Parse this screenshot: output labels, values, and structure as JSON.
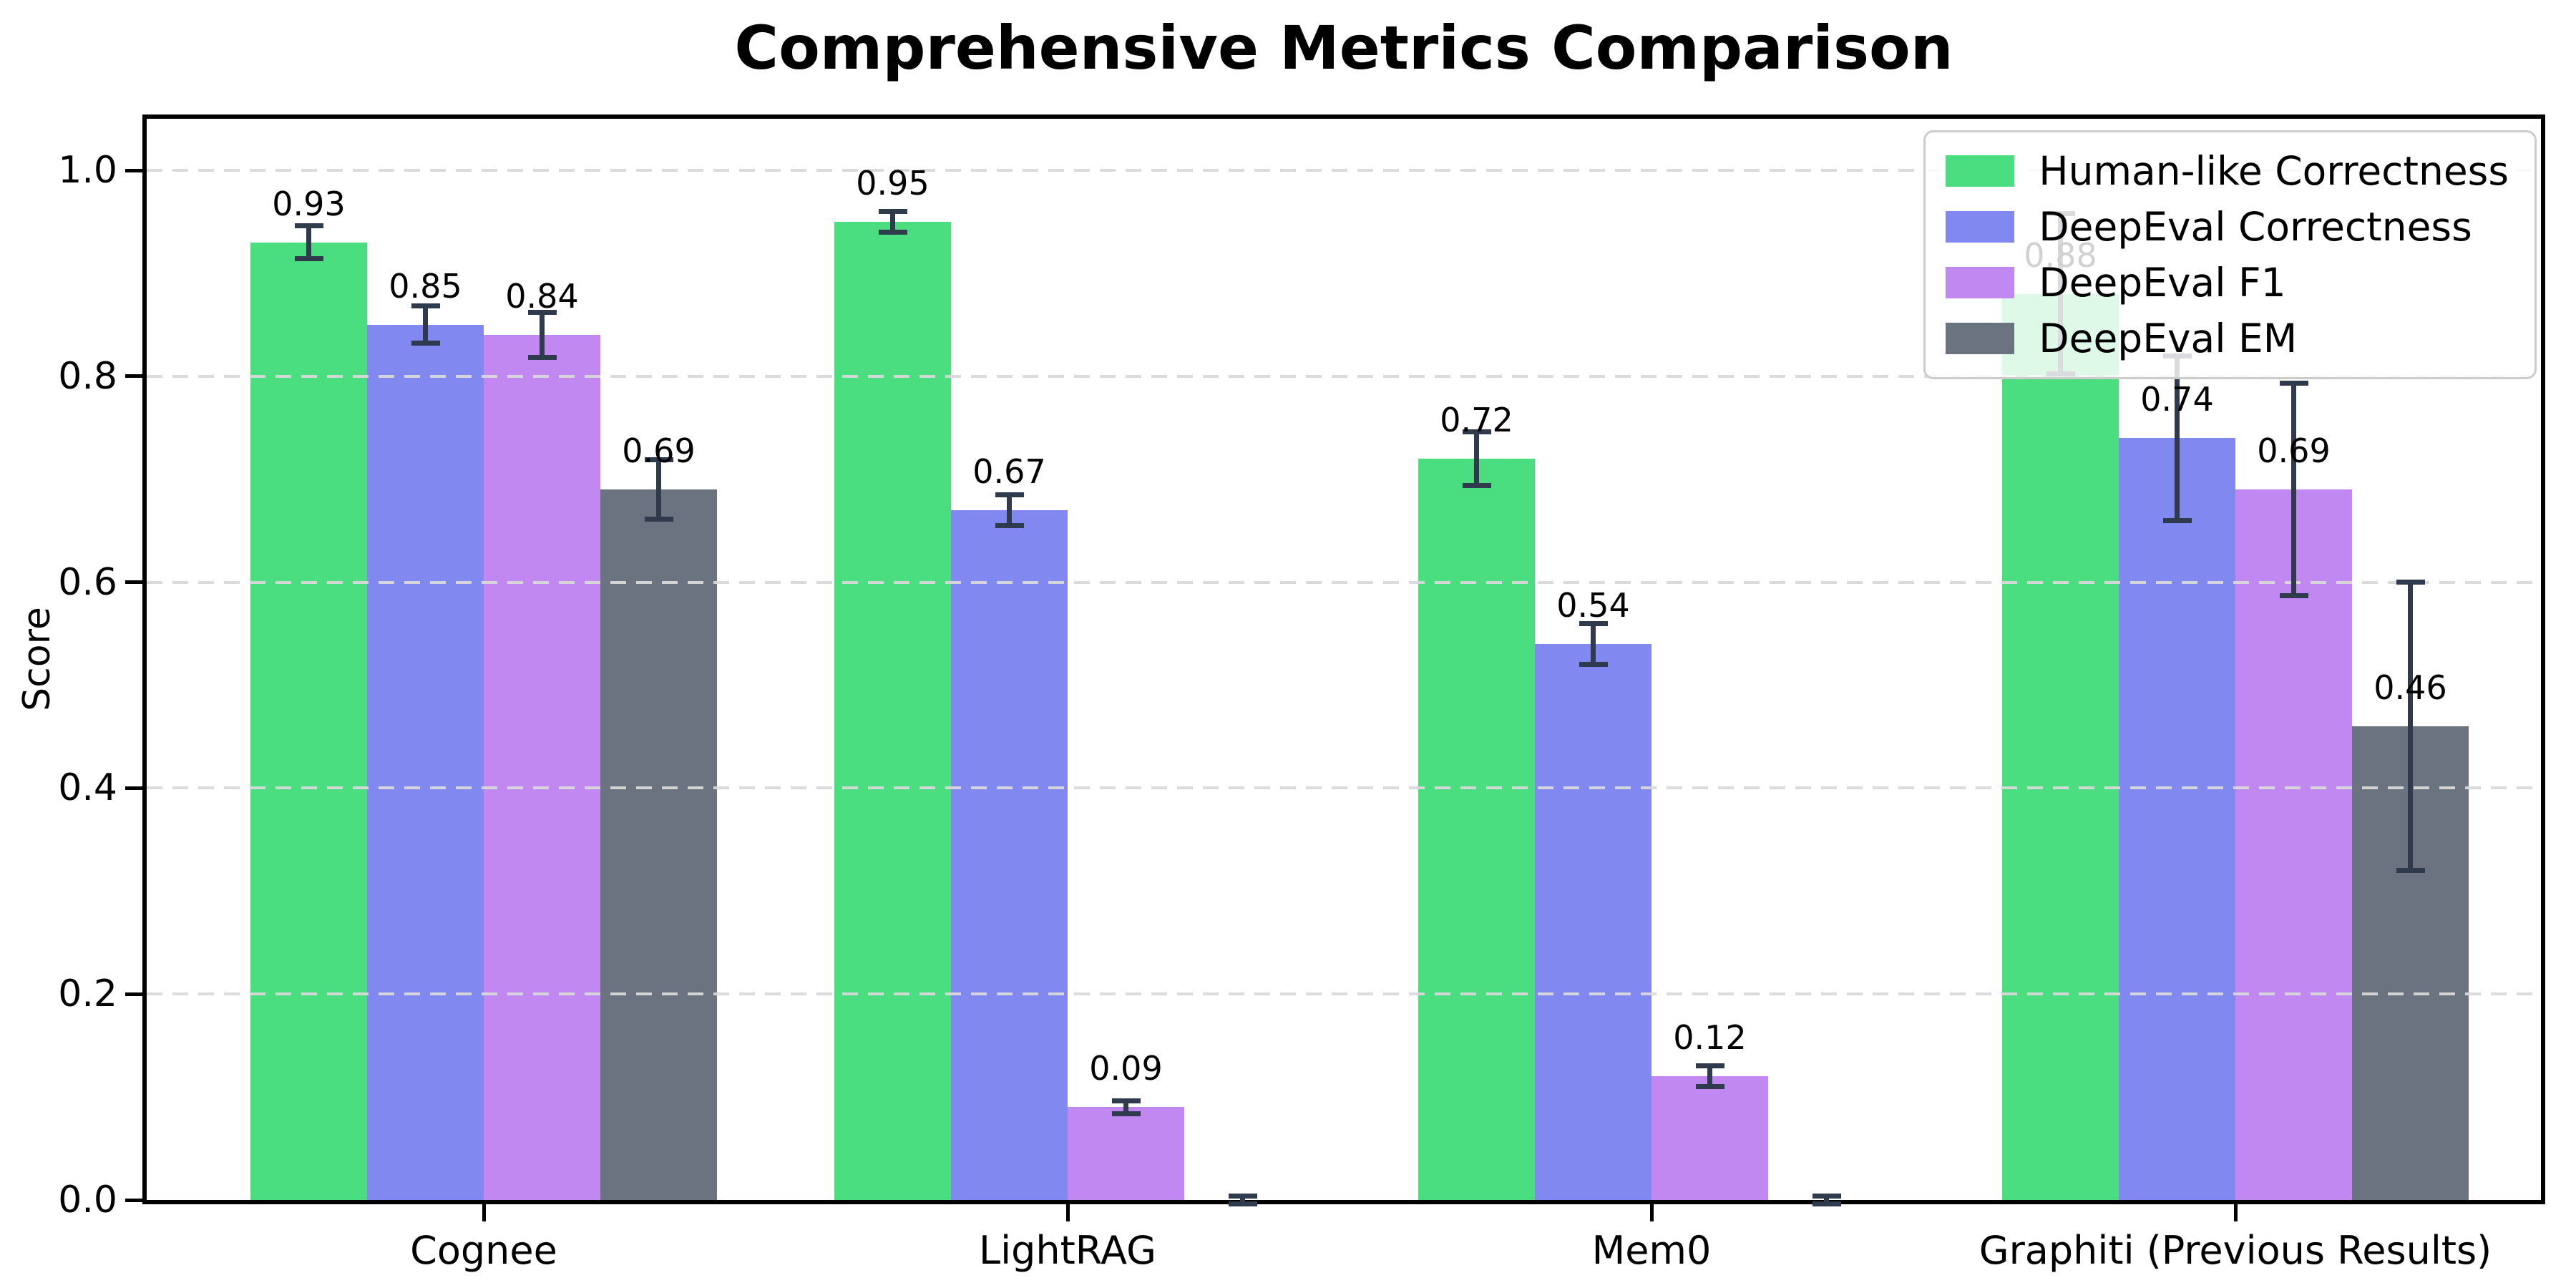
{
  "title": "Comprehensive Metrics Comparison",
  "chart_data": {
    "type": "bar",
    "title": "Comprehensive Metrics Comparison",
    "xlabel": "",
    "ylabel": "Score",
    "ylim": [
      0,
      1.05
    ],
    "yticks": [
      0.0,
      0.2,
      0.4,
      0.6,
      0.8,
      1.0
    ],
    "ytick_labels": [
      "0.0",
      "0.2",
      "0.4",
      "0.6",
      "0.8",
      "1.0"
    ],
    "grid": "horizontal-dashed",
    "gridline_color": "#d9d9d9",
    "error_bar_color": "#2f3b4c",
    "legend_position": "upper right",
    "categories": [
      "Cognee",
      "LightRAG",
      "Mem0",
      "Graphiti (Previous Results)"
    ],
    "series": [
      {
        "name": "Human-like Correctness",
        "color": "#4ade80",
        "values": [
          0.93,
          0.95,
          0.72,
          0.88
        ],
        "errors": [
          0.016,
          0.01,
          0.026,
          0.078
        ],
        "labels": [
          "0.93",
          "0.95",
          "0.72",
          "0.88"
        ]
      },
      {
        "name": "DeepEval Correctness",
        "color": "#8188f0",
        "values": [
          0.85,
          0.67,
          0.54,
          0.74
        ],
        "errors": [
          0.018,
          0.015,
          0.02,
          0.08
        ],
        "labels": [
          "0.85",
          "0.67",
          "0.54",
          "0.74"
        ]
      },
      {
        "name": "DeepEval F1",
        "color": "#c288f2",
        "values": [
          0.84,
          0.09,
          0.12,
          0.69
        ],
        "errors": [
          0.022,
          0.006,
          0.01,
          0.103
        ],
        "labels": [
          "0.84",
          "0.09",
          "0.12",
          "0.69"
        ]
      },
      {
        "name": "DeepEval EM",
        "color": "#6b7280",
        "values": [
          0.69,
          0.0,
          0.0,
          0.46
        ],
        "errors": [
          0.029,
          0.004,
          0.004,
          0.14
        ],
        "labels": [
          "0.69",
          "",
          "",
          "0.46"
        ]
      }
    ]
  }
}
